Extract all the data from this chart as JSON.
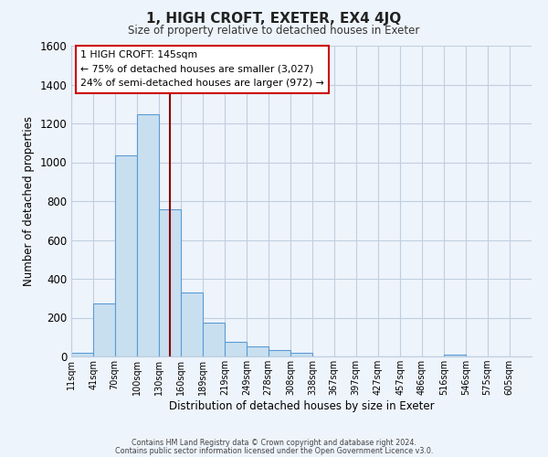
{
  "title": "1, HIGH CROFT, EXETER, EX4 4JQ",
  "subtitle": "Size of property relative to detached houses in Exeter",
  "xlabel": "Distribution of detached houses by size in Exeter",
  "ylabel": "Number of detached properties",
  "bar_left_edges": [
    11,
    41,
    70,
    100,
    130,
    160,
    189,
    219,
    249,
    278,
    308,
    338,
    367,
    397,
    427,
    457,
    486,
    516,
    546,
    575
  ],
  "bar_heights": [
    20,
    275,
    1035,
    1245,
    760,
    330,
    175,
    75,
    50,
    35,
    20,
    0,
    0,
    0,
    0,
    0,
    0,
    10,
    0,
    0
  ],
  "bin_widths": [
    30,
    29,
    30,
    30,
    30,
    29,
    30,
    30,
    29,
    30,
    30,
    29,
    30,
    30,
    30,
    29,
    30,
    30,
    29,
    30
  ],
  "bar_color": "#c8dff0",
  "bar_edge_color": "#5b9bd5",
  "vline_x": 145,
  "vline_color": "#8b0000",
  "ylim": [
    0,
    1600
  ],
  "xlim": [
    11,
    635
  ],
  "xtick_labels": [
    "11sqm",
    "41sqm",
    "70sqm",
    "100sqm",
    "130sqm",
    "160sqm",
    "189sqm",
    "219sqm",
    "249sqm",
    "278sqm",
    "308sqm",
    "338sqm",
    "367sqm",
    "397sqm",
    "427sqm",
    "457sqm",
    "486sqm",
    "516sqm",
    "546sqm",
    "575sqm",
    "605sqm"
  ],
  "xtick_positions": [
    11,
    41,
    70,
    100,
    130,
    160,
    189,
    219,
    249,
    278,
    308,
    338,
    367,
    397,
    427,
    457,
    486,
    516,
    546,
    575,
    605
  ],
  "annotation_title": "1 HIGH CROFT: 145sqm",
  "annotation_line1": "← 75% of detached houses are smaller (3,027)",
  "annotation_line2": "24% of semi-detached houses are larger (972) →",
  "annotation_box_facecolor": "#ffffff",
  "annotation_box_edgecolor": "#cc0000",
  "footer1": "Contains HM Land Registry data © Crown copyright and database right 2024.",
  "footer2": "Contains public sector information licensed under the Open Government Licence v3.0.",
  "fig_facecolor": "#eef4fb",
  "axes_facecolor": "#eef4fb",
  "grid_color": "#c0cfe0"
}
